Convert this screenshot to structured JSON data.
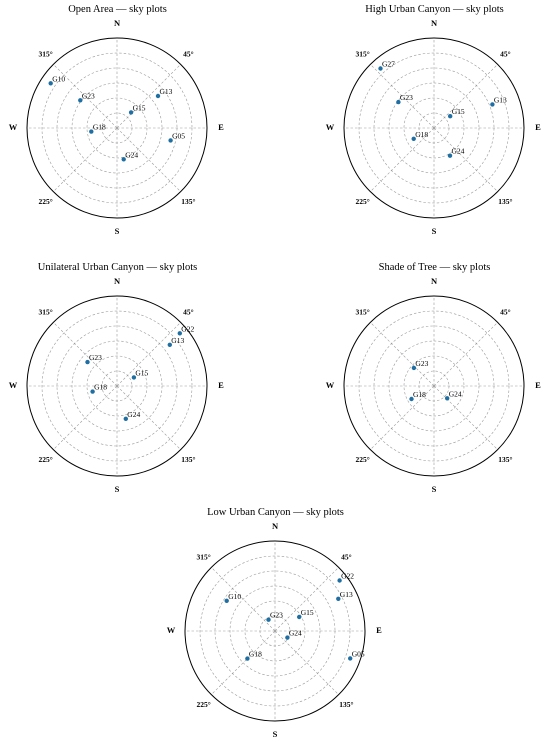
{
  "chart_data": [
    {
      "type": "scatter",
      "title": "Open Area — sky plots",
      "projection": "polar",
      "grid": true,
      "direction_labels": [
        "N",
        "45°",
        "E",
        "135°",
        "S",
        "225°",
        "W",
        "315°"
      ],
      "points": [
        {
          "name": "G10",
          "azimuth": 304,
          "elevation": 10
        },
        {
          "name": "G23",
          "azimuth": 307,
          "elevation": 44
        },
        {
          "name": "G15",
          "azimuth": 42,
          "elevation": 69
        },
        {
          "name": "G13",
          "azimuth": 52,
          "elevation": 38
        },
        {
          "name": "G18",
          "azimuth": 262,
          "elevation": 64
        },
        {
          "name": "G05",
          "azimuth": 103,
          "elevation": 35
        },
        {
          "name": "G24",
          "azimuth": 168,
          "elevation": 58
        }
      ]
    },
    {
      "type": "scatter",
      "title": "High Urban Canyon — sky plots",
      "projection": "polar",
      "grid": true,
      "direction_labels": [
        "N",
        "45°",
        "E",
        "135°",
        "S",
        "225°",
        "W",
        "315°"
      ],
      "points": [
        {
          "name": "G27",
          "azimuth": 318,
          "elevation": 10
        },
        {
          "name": "G23",
          "azimuth": 306,
          "elevation": 46
        },
        {
          "name": "G15",
          "azimuth": 54,
          "elevation": 70
        },
        {
          "name": "G13",
          "azimuth": 68,
          "elevation": 27
        },
        {
          "name": "G18",
          "azimuth": 242,
          "elevation": 67
        },
        {
          "name": "G24",
          "azimuth": 150,
          "elevation": 58
        }
      ]
    },
    {
      "type": "scatter",
      "title": "Unilateral Urban Canyon — sky plots",
      "projection": "polar",
      "grid": true,
      "direction_labels": [
        "N",
        "45°",
        "E",
        "135°",
        "S",
        "225°",
        "W",
        "315°"
      ],
      "points": [
        {
          "name": "G22",
          "azimuth": 50,
          "elevation": 8
        },
        {
          "name": "G13",
          "azimuth": 52,
          "elevation": 23
        },
        {
          "name": "G23",
          "azimuth": 309,
          "elevation": 52
        },
        {
          "name": "G15",
          "azimuth": 63,
          "elevation": 71
        },
        {
          "name": "G18",
          "azimuth": 257,
          "elevation": 65
        },
        {
          "name": "G24",
          "azimuth": 165,
          "elevation": 56
        }
      ]
    },
    {
      "type": "scatter",
      "title": "Shade of Tree — sky plots",
      "projection": "polar",
      "grid": true,
      "direction_labels": [
        "N",
        "45°",
        "E",
        "135°",
        "S",
        "225°",
        "W",
        "315°"
      ],
      "points": [
        {
          "name": "G23",
          "azimuth": 312,
          "elevation": 63
        },
        {
          "name": "G18",
          "azimuth": 240,
          "elevation": 64
        },
        {
          "name": "G24",
          "azimuth": 133,
          "elevation": 72
        }
      ]
    },
    {
      "type": "scatter",
      "title": "Low Urban Canyon — sky plots",
      "projection": "polar",
      "grid": true,
      "direction_labels": [
        "N",
        "45°",
        "E",
        "135°",
        "S",
        "225°",
        "W",
        "315°"
      ],
      "points": [
        {
          "name": "G10",
          "azimuth": 302,
          "elevation": 33
        },
        {
          "name": "G23",
          "azimuth": 330,
          "elevation": 77
        },
        {
          "name": "G15",
          "azimuth": 60,
          "elevation": 62
        },
        {
          "name": "G22",
          "azimuth": 52,
          "elevation": 8
        },
        {
          "name": "G13",
          "azimuth": 63,
          "elevation": 19
        },
        {
          "name": "G24",
          "azimuth": 118,
          "elevation": 76
        },
        {
          "name": "G18",
          "azimuth": 225,
          "elevation": 51
        },
        {
          "name": "G05",
          "azimuth": 110,
          "elevation": 10
        }
      ]
    }
  ]
}
